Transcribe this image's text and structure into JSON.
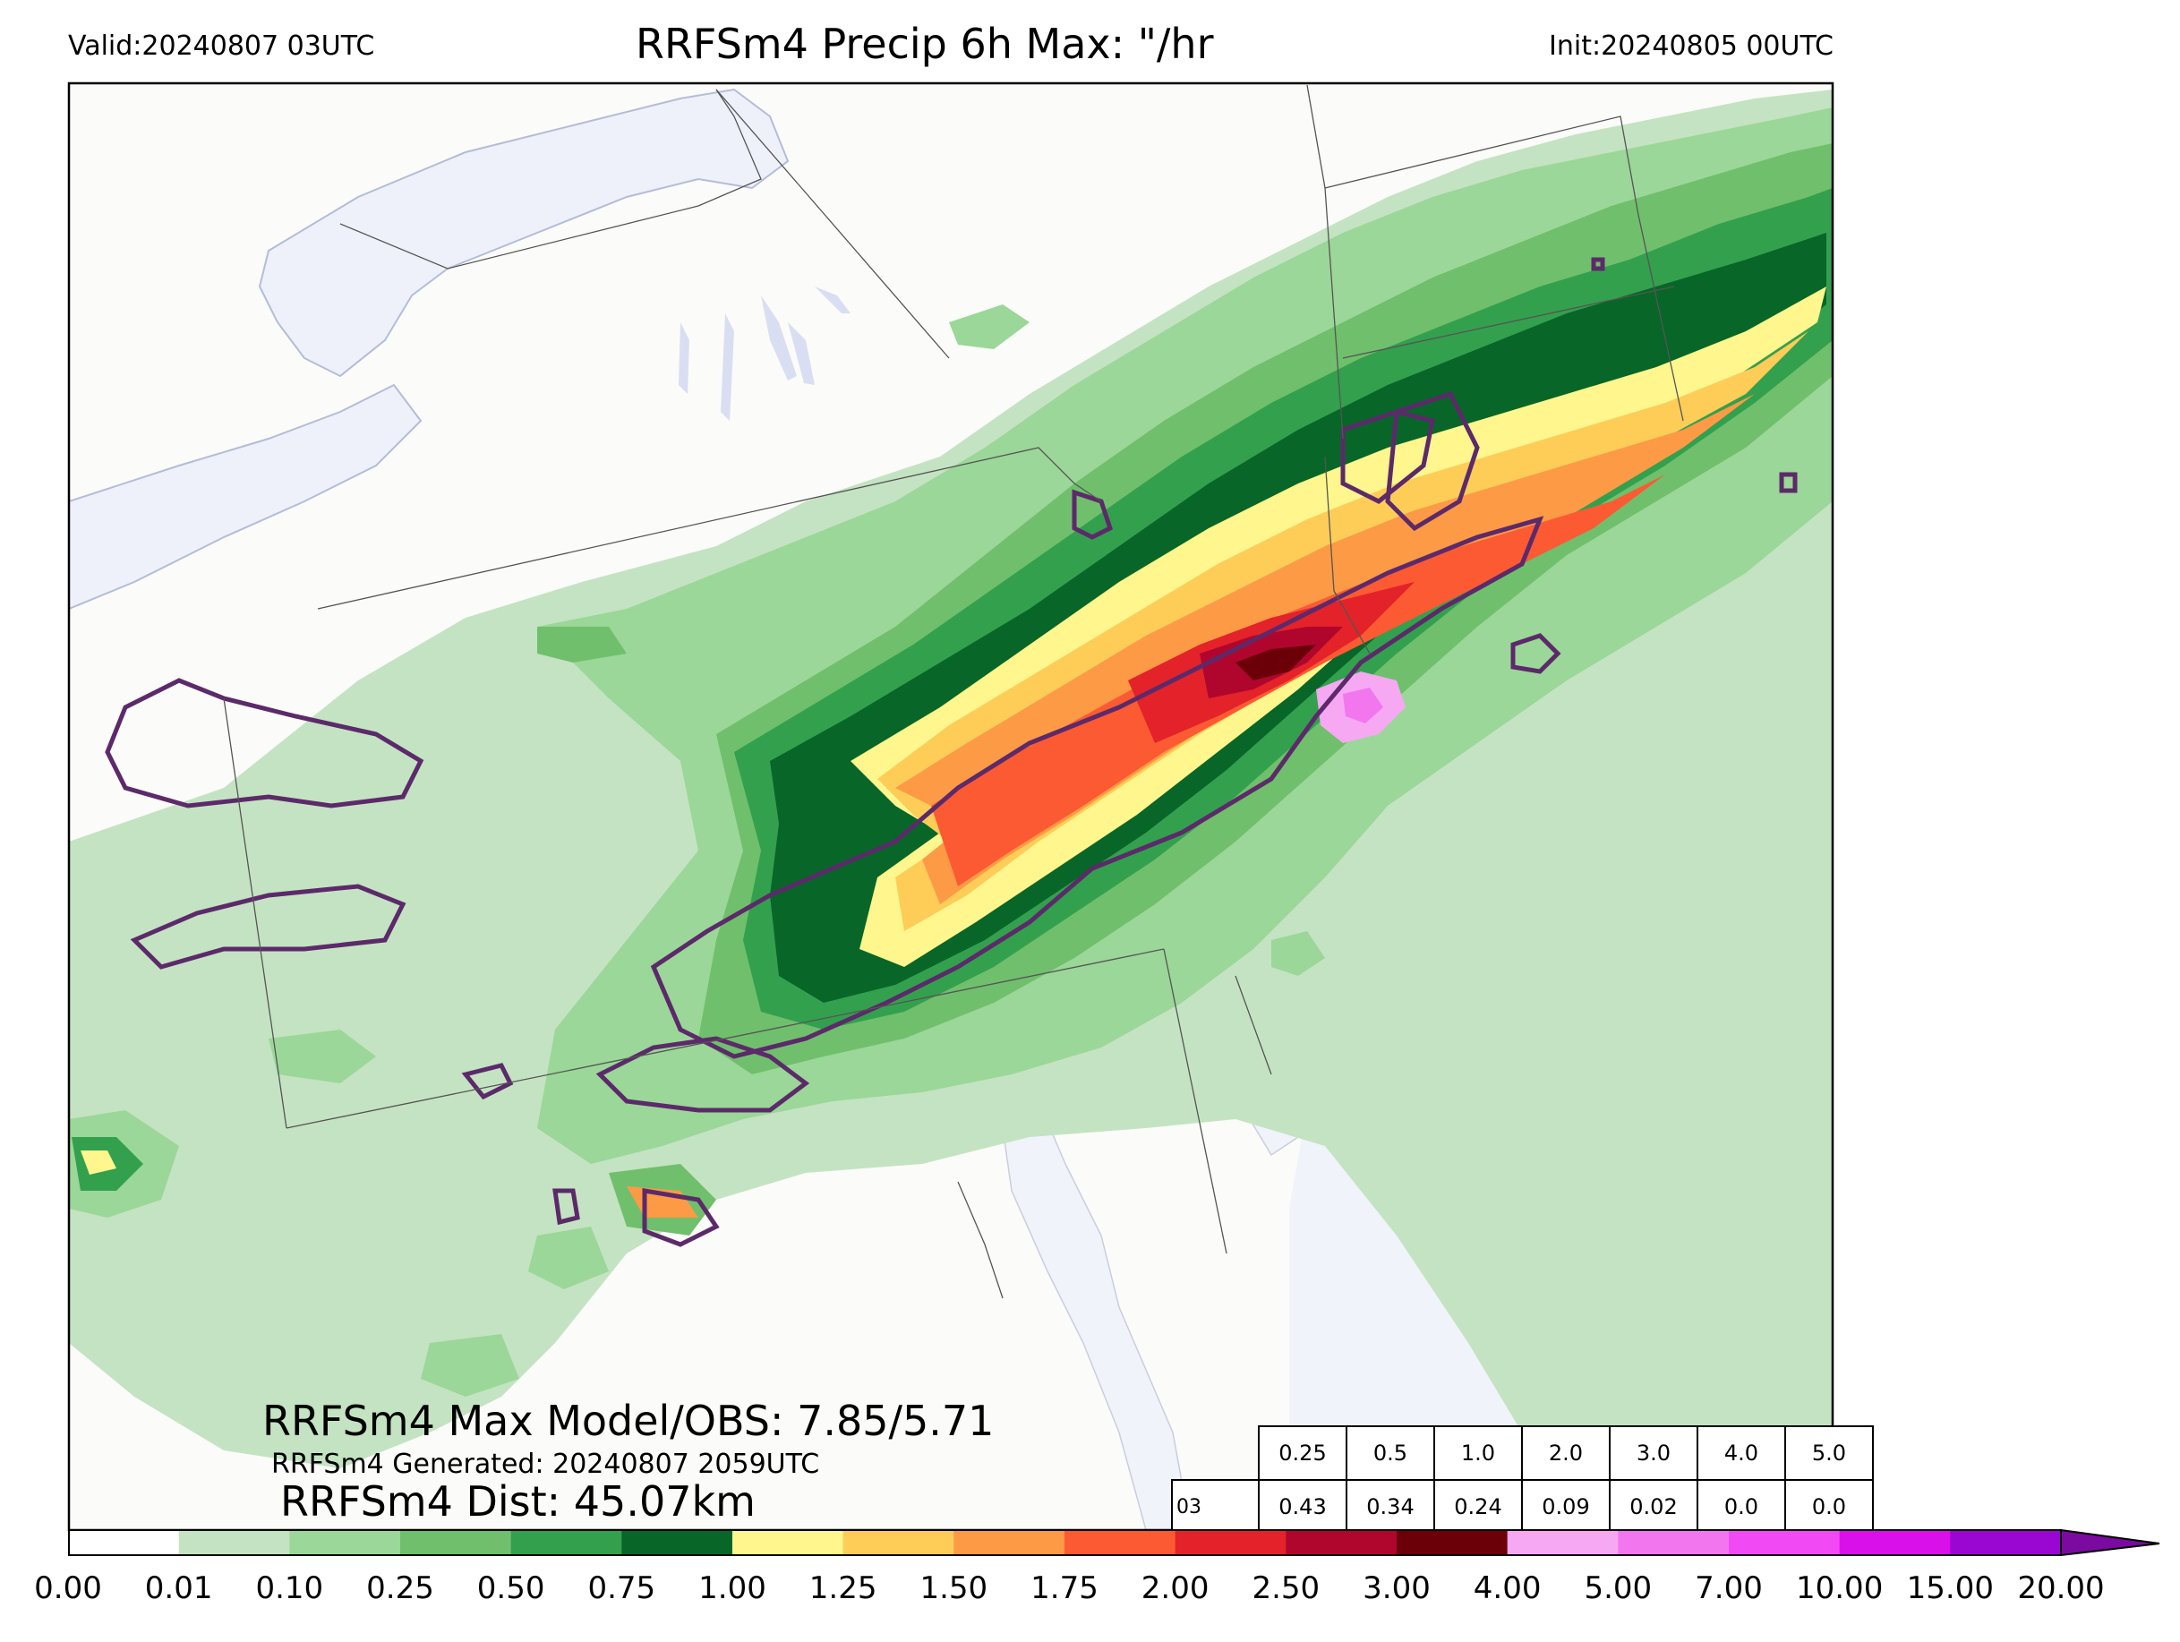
{
  "header": {
    "valid": "Valid:20240807 03UTC",
    "title": "RRFSm4 Precip 6h Max: \"/hr",
    "init": "Init:20240805 00UTC"
  },
  "stats": {
    "max_model_obs": "RRFSm4 Max Model/OBS: 7.85/5.71",
    "generated": "RRFSm4 Generated: 20240807 2059UTC",
    "dist": "RRFSm4 Dist: 45.07km"
  },
  "verification_table": {
    "row_label": "03",
    "thresholds": [
      "0.25",
      "0.5",
      "1.0",
      "2.0",
      "3.0",
      "4.0",
      "5.0"
    ],
    "scores": [
      "0.43",
      "0.34",
      "0.24",
      "0.09",
      "0.02",
      "0.0",
      "0.0"
    ]
  },
  "colorbar": {
    "ticks": [
      "0.00",
      "0.01",
      "0.10",
      "0.25",
      "0.50",
      "0.75",
      "1.00",
      "1.25",
      "1.50",
      "1.75",
      "2.00",
      "2.50",
      "3.00",
      "4.00",
      "5.00",
      "7.00",
      "10.00",
      "15.00",
      "20.00"
    ],
    "colors": [
      "#ffffff",
      "#c4e3c2",
      "#9bd798",
      "#70bf6c",
      "#33a04e",
      "#086628",
      "#fff68e",
      "#fdcd58",
      "#fd9a45",
      "#fc5a32",
      "#e3222a",
      "#b0062d",
      "#6b0008",
      "#f6a8f2",
      "#f277ef",
      "#f14af4",
      "#da10ea",
      "#9a06d2"
    ],
    "extend_color": "#7a0aa0"
  },
  "map_colors": {
    "land": "#fbfbf9",
    "water": "#f0f3fa",
    "lake_edge": "#b4bcd8",
    "borders": "#555555",
    "obs_contour": "#5c2a6a"
  }
}
